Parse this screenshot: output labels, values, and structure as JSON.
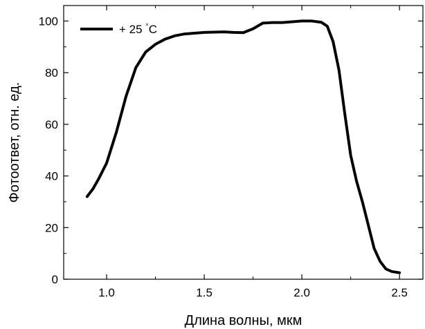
{
  "chart_data": {
    "type": "line",
    "title": "",
    "xlabel": "Длина волны, мкм",
    "ylabel": "Фотоответ, отн. ед.",
    "xlim": [
      0.78,
      2.62
    ],
    "ylim": [
      0,
      106
    ],
    "xticks": [
      1.0,
      1.5,
      2.0,
      2.5
    ],
    "xtick_labels": [
      "1.0",
      "1.5",
      "2.0",
      "2.5"
    ],
    "yticks": [
      0,
      20,
      40,
      60,
      80,
      100
    ],
    "ytick_labels": [
      "0",
      "20",
      "40",
      "60",
      "80",
      "100"
    ],
    "grid": false,
    "legend_position": "top-left",
    "series": [
      {
        "name": "+ 25 °C",
        "color": "#000000",
        "x": [
          0.9,
          0.93,
          0.96,
          1.0,
          1.05,
          1.1,
          1.15,
          1.2,
          1.25,
          1.3,
          1.35,
          1.4,
          1.45,
          1.5,
          1.55,
          1.6,
          1.65,
          1.7,
          1.75,
          1.8,
          1.85,
          1.9,
          1.95,
          2.0,
          2.05,
          2.1,
          2.13,
          2.16,
          2.19,
          2.22,
          2.25,
          2.28,
          2.31,
          2.34,
          2.37,
          2.4,
          2.43,
          2.46,
          2.5
        ],
        "y": [
          32,
          35,
          39,
          45,
          57,
          71,
          82,
          88,
          91,
          93,
          94.3,
          95,
          95.3,
          95.6,
          95.7,
          95.8,
          95.6,
          95.5,
          97,
          99.2,
          99.4,
          99.4,
          99.7,
          100,
          100,
          99.5,
          98,
          92,
          81,
          64,
          48,
          38,
          30,
          21,
          12,
          7,
          4,
          3,
          2.5
        ]
      }
    ]
  }
}
